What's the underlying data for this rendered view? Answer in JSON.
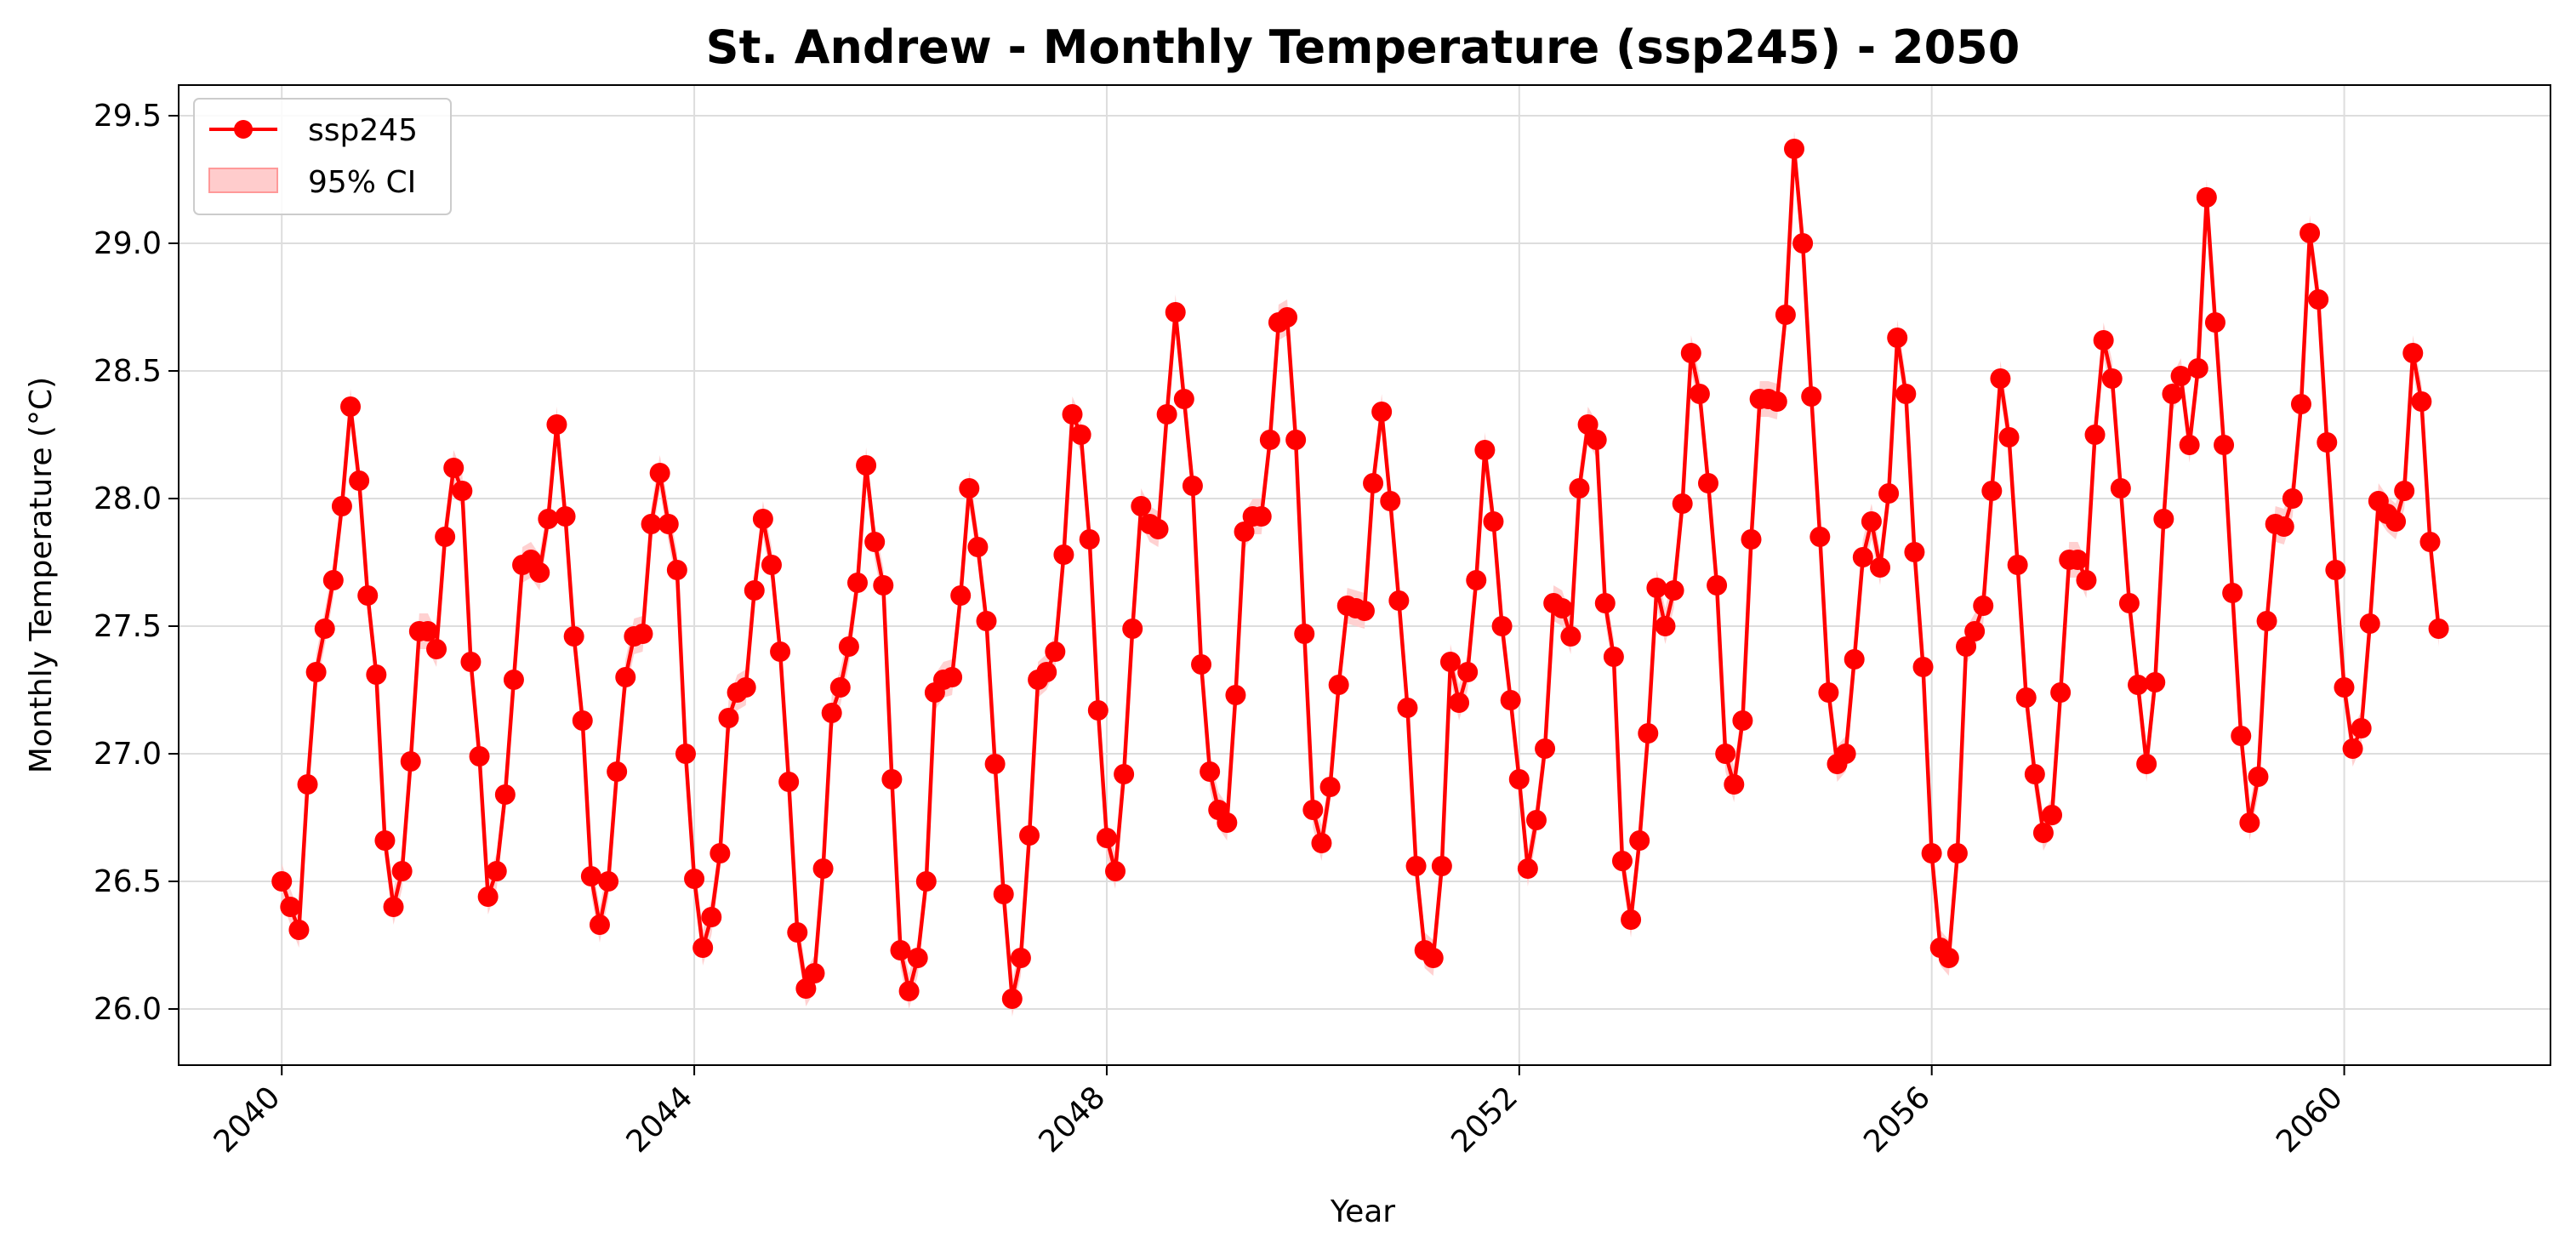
{
  "chart_data": {
    "type": "line",
    "title": "St. Andrew - Monthly Temperature (ssp245) - 2050",
    "xlabel": "Year",
    "ylabel": "Monthly Temperature (°C)",
    "xlim": [
      2039.0,
      2062.0
    ],
    "ylim": [
      25.78,
      29.62
    ],
    "x_ticks": [
      "2040",
      "2044",
      "2048",
      "2052",
      "2056",
      "2060"
    ],
    "y_ticks": [
      "26.0",
      "26.5",
      "27.0",
      "27.5",
      "28.0",
      "28.5",
      "29.0",
      "29.5"
    ],
    "grid": true,
    "legend": {
      "position": "top-left",
      "entries": [
        "ssp245",
        "95% CI"
      ]
    },
    "colors": {
      "line": "#ff0000",
      "ci": "#ffcccc"
    },
    "x_start": 2040.0,
    "x_step_years": 0.08333,
    "series": [
      {
        "name": "ssp245",
        "values": [
          26.5,
          26.4,
          26.31,
          26.88,
          27.32,
          27.49,
          27.68,
          27.97,
          28.36,
          28.07,
          27.62,
          27.31,
          26.66,
          26.4,
          26.54,
          26.97,
          27.48,
          27.48,
          27.41,
          27.85,
          28.12,
          28.03,
          27.36,
          26.99,
          26.44,
          26.54,
          26.84,
          27.29,
          27.74,
          27.76,
          27.71,
          27.92,
          28.29,
          27.93,
          27.46,
          27.13,
          26.52,
          26.33,
          26.5,
          26.93,
          27.3,
          27.46,
          27.47,
          27.9,
          28.1,
          27.9,
          27.72,
          27.0,
          26.51,
          26.24,
          26.36,
          26.61,
          27.14,
          27.24,
          27.26,
          27.64,
          27.92,
          27.74,
          27.4,
          26.89,
          26.3,
          26.08,
          26.14,
          26.55,
          27.16,
          27.26,
          27.42,
          27.67,
          28.13,
          27.83,
          27.66,
          26.9,
          26.23,
          26.07,
          26.2,
          26.5,
          27.24,
          27.29,
          27.3,
          27.62,
          28.04,
          27.81,
          27.52,
          26.96,
          26.45,
          26.04,
          26.2,
          26.68,
          27.29,
          27.32,
          27.4,
          27.78,
          28.33,
          28.25,
          27.84,
          27.17,
          26.67,
          26.54,
          26.92,
          27.49,
          27.97,
          27.9,
          27.88,
          28.33,
          28.73,
          28.39,
          28.05,
          27.35,
          26.93,
          26.78,
          26.73,
          27.23,
          27.87,
          27.93,
          27.93,
          28.23,
          28.69,
          28.71,
          28.23,
          27.47,
          26.78,
          26.65,
          26.87,
          27.27,
          27.58,
          27.57,
          27.56,
          28.06,
          28.34,
          27.99,
          27.6,
          27.18,
          26.56,
          26.23,
          26.2,
          26.56,
          27.36,
          27.2,
          27.32,
          27.68,
          28.19,
          27.91,
          27.5,
          27.21,
          26.9,
          26.55,
          26.74,
          27.02,
          27.59,
          27.57,
          27.46,
          28.04,
          28.29,
          28.23,
          27.59,
          27.38,
          26.58,
          26.35,
          26.66,
          27.08,
          27.65,
          27.5,
          27.64,
          27.98,
          28.57,
          28.41,
          28.06,
          27.66,
          27.0,
          26.88,
          27.13,
          27.84,
          28.39,
          28.39,
          28.38,
          28.72,
          29.37,
          29.0,
          28.4,
          27.85,
          27.24,
          26.96,
          27.0,
          27.37,
          27.77,
          27.91,
          27.73,
          28.02,
          28.63,
          28.41,
          27.79,
          27.34,
          26.61,
          26.24,
          26.2,
          26.61,
          27.42,
          27.48,
          27.58,
          28.03,
          28.47,
          28.24,
          27.74,
          27.22,
          26.92,
          26.69,
          26.76,
          27.24,
          27.76,
          27.76,
          27.68,
          28.25,
          28.62,
          28.47,
          28.04,
          27.59,
          27.27,
          26.96,
          27.28,
          27.92,
          28.41,
          28.48,
          28.21,
          28.51,
          29.18,
          28.69,
          28.21,
          27.63,
          27.07,
          26.73,
          26.91,
          27.52,
          27.9,
          27.89,
          28.0,
          28.37,
          29.04,
          28.78,
          28.22,
          27.72,
          27.26,
          27.02,
          27.1,
          27.51,
          27.99,
          27.94,
          27.91,
          28.03,
          28.57,
          28.38,
          27.83,
          27.49
        ]
      }
    ]
  }
}
